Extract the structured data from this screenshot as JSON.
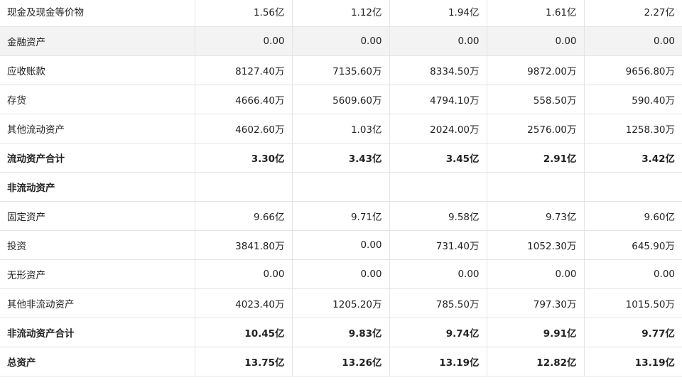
{
  "table": {
    "rows": [
      {
        "key": "cash",
        "label": "现金及现金等价物",
        "values": [
          "1.56亿",
          "1.12亿",
          "1.94亿",
          "1.61亿",
          "2.27亿"
        ],
        "shaded": false,
        "bold": false
      },
      {
        "key": "fin_assets",
        "label": "金融资产",
        "values": [
          "0.00",
          "0.00",
          "0.00",
          "0.00",
          "0.00"
        ],
        "shaded": true,
        "bold": false
      },
      {
        "key": "receivables",
        "label": "应收账款",
        "values": [
          "8127.40万",
          "7135.60万",
          "8334.50万",
          "9872.00万",
          "9656.80万"
        ],
        "shaded": false,
        "bold": false
      },
      {
        "key": "inventory",
        "label": "存货",
        "values": [
          "4666.40万",
          "5609.60万",
          "4794.10万",
          "558.50万",
          "590.40万"
        ],
        "shaded": false,
        "bold": false
      },
      {
        "key": "other_current",
        "label": "其他流动资产",
        "values": [
          "4602.60万",
          "1.03亿",
          "2024.00万",
          "2576.00万",
          "1258.30万"
        ],
        "shaded": false,
        "bold": false
      },
      {
        "key": "total_current",
        "label": "流动资产合计",
        "values": [
          "3.30亿",
          "3.43亿",
          "3.45亿",
          "2.91亿",
          "3.42亿"
        ],
        "shaded": false,
        "bold": true
      },
      {
        "key": "noncurrent_header",
        "label": "非流动资产",
        "values": [
          "",
          "",
          "",
          "",
          ""
        ],
        "shaded": false,
        "bold": true
      },
      {
        "key": "fixed_assets",
        "label": "固定资产",
        "values": [
          "9.66亿",
          "9.71亿",
          "9.58亿",
          "9.73亿",
          "9.60亿"
        ],
        "shaded": false,
        "bold": false
      },
      {
        "key": "investments",
        "label": "投资",
        "values": [
          "3841.80万",
          "0.00",
          "731.40万",
          "1052.30万",
          "645.90万"
        ],
        "shaded": false,
        "bold": false
      },
      {
        "key": "intangibles",
        "label": "无形资产",
        "values": [
          "0.00",
          "0.00",
          "0.00",
          "0.00",
          "0.00"
        ],
        "shaded": false,
        "bold": false
      },
      {
        "key": "other_noncurrent",
        "label": "其他非流动资产",
        "values": [
          "4023.40万",
          "1205.20万",
          "785.50万",
          "797.30万",
          "1015.50万"
        ],
        "shaded": false,
        "bold": false
      },
      {
        "key": "total_noncurrent",
        "label": "非流动资产合计",
        "values": [
          "10.45亿",
          "9.83亿",
          "9.74亿",
          "9.91亿",
          "9.77亿"
        ],
        "shaded": false,
        "bold": true
      },
      {
        "key": "total_assets",
        "label": "总资产",
        "values": [
          "13.75亿",
          "13.26亿",
          "13.19亿",
          "12.82亿",
          "13.19亿"
        ],
        "shaded": false,
        "bold": true
      }
    ]
  }
}
